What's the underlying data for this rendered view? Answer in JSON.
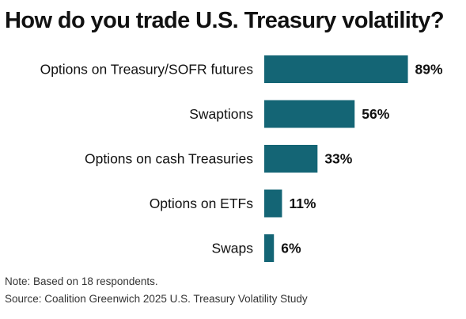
{
  "title": "How do you trade U.S. Treasury volatility?",
  "note": "Note: Based on 18 respondents.",
  "source": "Source: Coalition Greenwich 2025 U.S. Treasury Volatility Study",
  "colors": {
    "bar": "#146575",
    "text": "#111111"
  },
  "chart_data": {
    "type": "bar",
    "orientation": "horizontal",
    "title": "How do you trade U.S. Treasury volatility?",
    "categories": [
      "Options on Treasury/SOFR futures",
      "Swaptions",
      "Options on cash Treasuries",
      "Options on ETFs",
      "Swaps"
    ],
    "values": [
      89,
      56,
      33,
      11,
      6
    ],
    "value_labels": [
      "89%",
      "56%",
      "33%",
      "11%",
      "6%"
    ],
    "unit": "%",
    "xlim": [
      0,
      100
    ],
    "grid": false,
    "legend": "none"
  }
}
